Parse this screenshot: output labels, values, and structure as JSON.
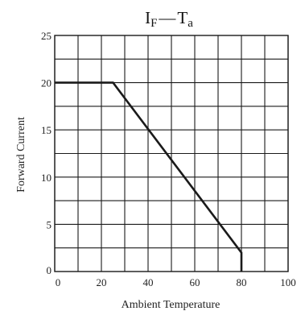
{
  "chart_data": {
    "type": "line",
    "title": {
      "main_symbol": "I",
      "main_subscript": "F",
      "separator": "—",
      "var_symbol": "T",
      "var_subscript": "a"
    },
    "xlabel": "Ambient Temperature",
    "ylabel": "Forward Current",
    "xlim": [
      0,
      100
    ],
    "ylim": [
      0,
      25
    ],
    "x_major_ticks": [
      0,
      20,
      40,
      60,
      80,
      100
    ],
    "y_major_ticks": [
      0,
      5,
      10,
      15,
      20,
      25
    ],
    "x_grid_step": 10,
    "y_grid_step": 2.5,
    "grid": true,
    "line_color": "#1a1a1a",
    "grid_color": "#1a1a1a",
    "series": [
      {
        "x": [
          0,
          25,
          80,
          80
        ],
        "y": [
          20,
          20,
          2,
          0
        ]
      }
    ]
  }
}
